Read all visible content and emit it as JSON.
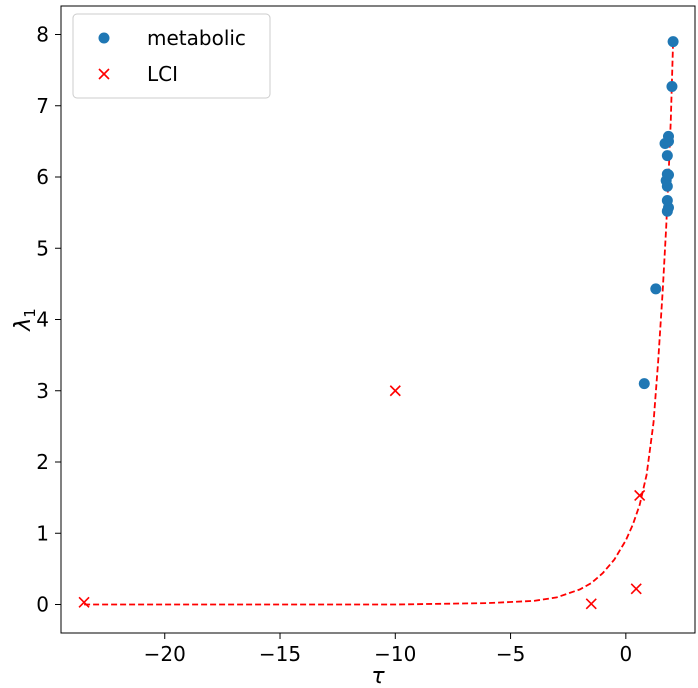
{
  "chart_data": {
    "type": "scatter",
    "title": "",
    "xlabel": "τ",
    "ylabel_main": "λ",
    "ylabel_sub": "1",
    "xlim": [
      -24.5,
      3.0
    ],
    "ylim": [
      -0.4,
      8.4
    ],
    "xticks": [
      -20,
      -15,
      -10,
      -5,
      0
    ],
    "xtick_labels": [
      "−20",
      "−15",
      "−10",
      "−5",
      "0"
    ],
    "yticks": [
      0,
      1,
      2,
      3,
      4,
      5,
      6,
      7,
      8
    ],
    "ytick_labels": [
      "0",
      "1",
      "2",
      "3",
      "4",
      "5",
      "6",
      "7",
      "8"
    ],
    "grid": false,
    "legend_position": "top-left",
    "series": [
      {
        "name": "metabolic",
        "marker": "circle",
        "color": "#1f77b4",
        "points": [
          [
            0.8,
            3.1
          ],
          [
            1.3,
            4.43
          ],
          [
            1.8,
            5.52
          ],
          [
            1.85,
            5.57
          ],
          [
            1.8,
            5.67
          ],
          [
            1.8,
            5.87
          ],
          [
            1.75,
            5.95
          ],
          [
            1.8,
            6.04
          ],
          [
            1.85,
            6.03
          ],
          [
            1.8,
            6.3
          ],
          [
            1.7,
            6.47
          ],
          [
            1.85,
            6.5
          ],
          [
            1.85,
            6.57
          ],
          [
            2.0,
            7.27
          ],
          [
            2.05,
            7.9
          ]
        ]
      },
      {
        "name": "LCI",
        "marker": "x",
        "color": "#ff0000",
        "points": [
          [
            -23.5,
            0.03
          ],
          [
            -10.0,
            3.0
          ],
          [
            -1.5,
            0.01
          ],
          [
            0.45,
            0.22
          ],
          [
            0.6,
            1.53
          ]
        ]
      }
    ],
    "fit_curve": {
      "style": "dashed",
      "color": "#ff0000",
      "points": [
        [
          -23.5,
          0.0
        ],
        [
          -10,
          0.0
        ],
        [
          -6,
          0.02
        ],
        [
          -4,
          0.05
        ],
        [
          -3,
          0.1
        ],
        [
          -2,
          0.21
        ],
        [
          -1.5,
          0.3
        ],
        [
          -1,
          0.44
        ],
        [
          -0.5,
          0.63
        ],
        [
          0,
          0.9
        ],
        [
          0.3,
          1.12
        ],
        [
          0.6,
          1.4
        ],
        [
          0.9,
          1.82
        ],
        [
          1.2,
          2.55
        ],
        [
          1.4,
          3.4
        ],
        [
          1.6,
          4.4
        ],
        [
          1.75,
          5.3
        ],
        [
          1.85,
          6.0
        ],
        [
          1.95,
          6.8
        ],
        [
          2.05,
          7.9
        ]
      ]
    }
  }
}
